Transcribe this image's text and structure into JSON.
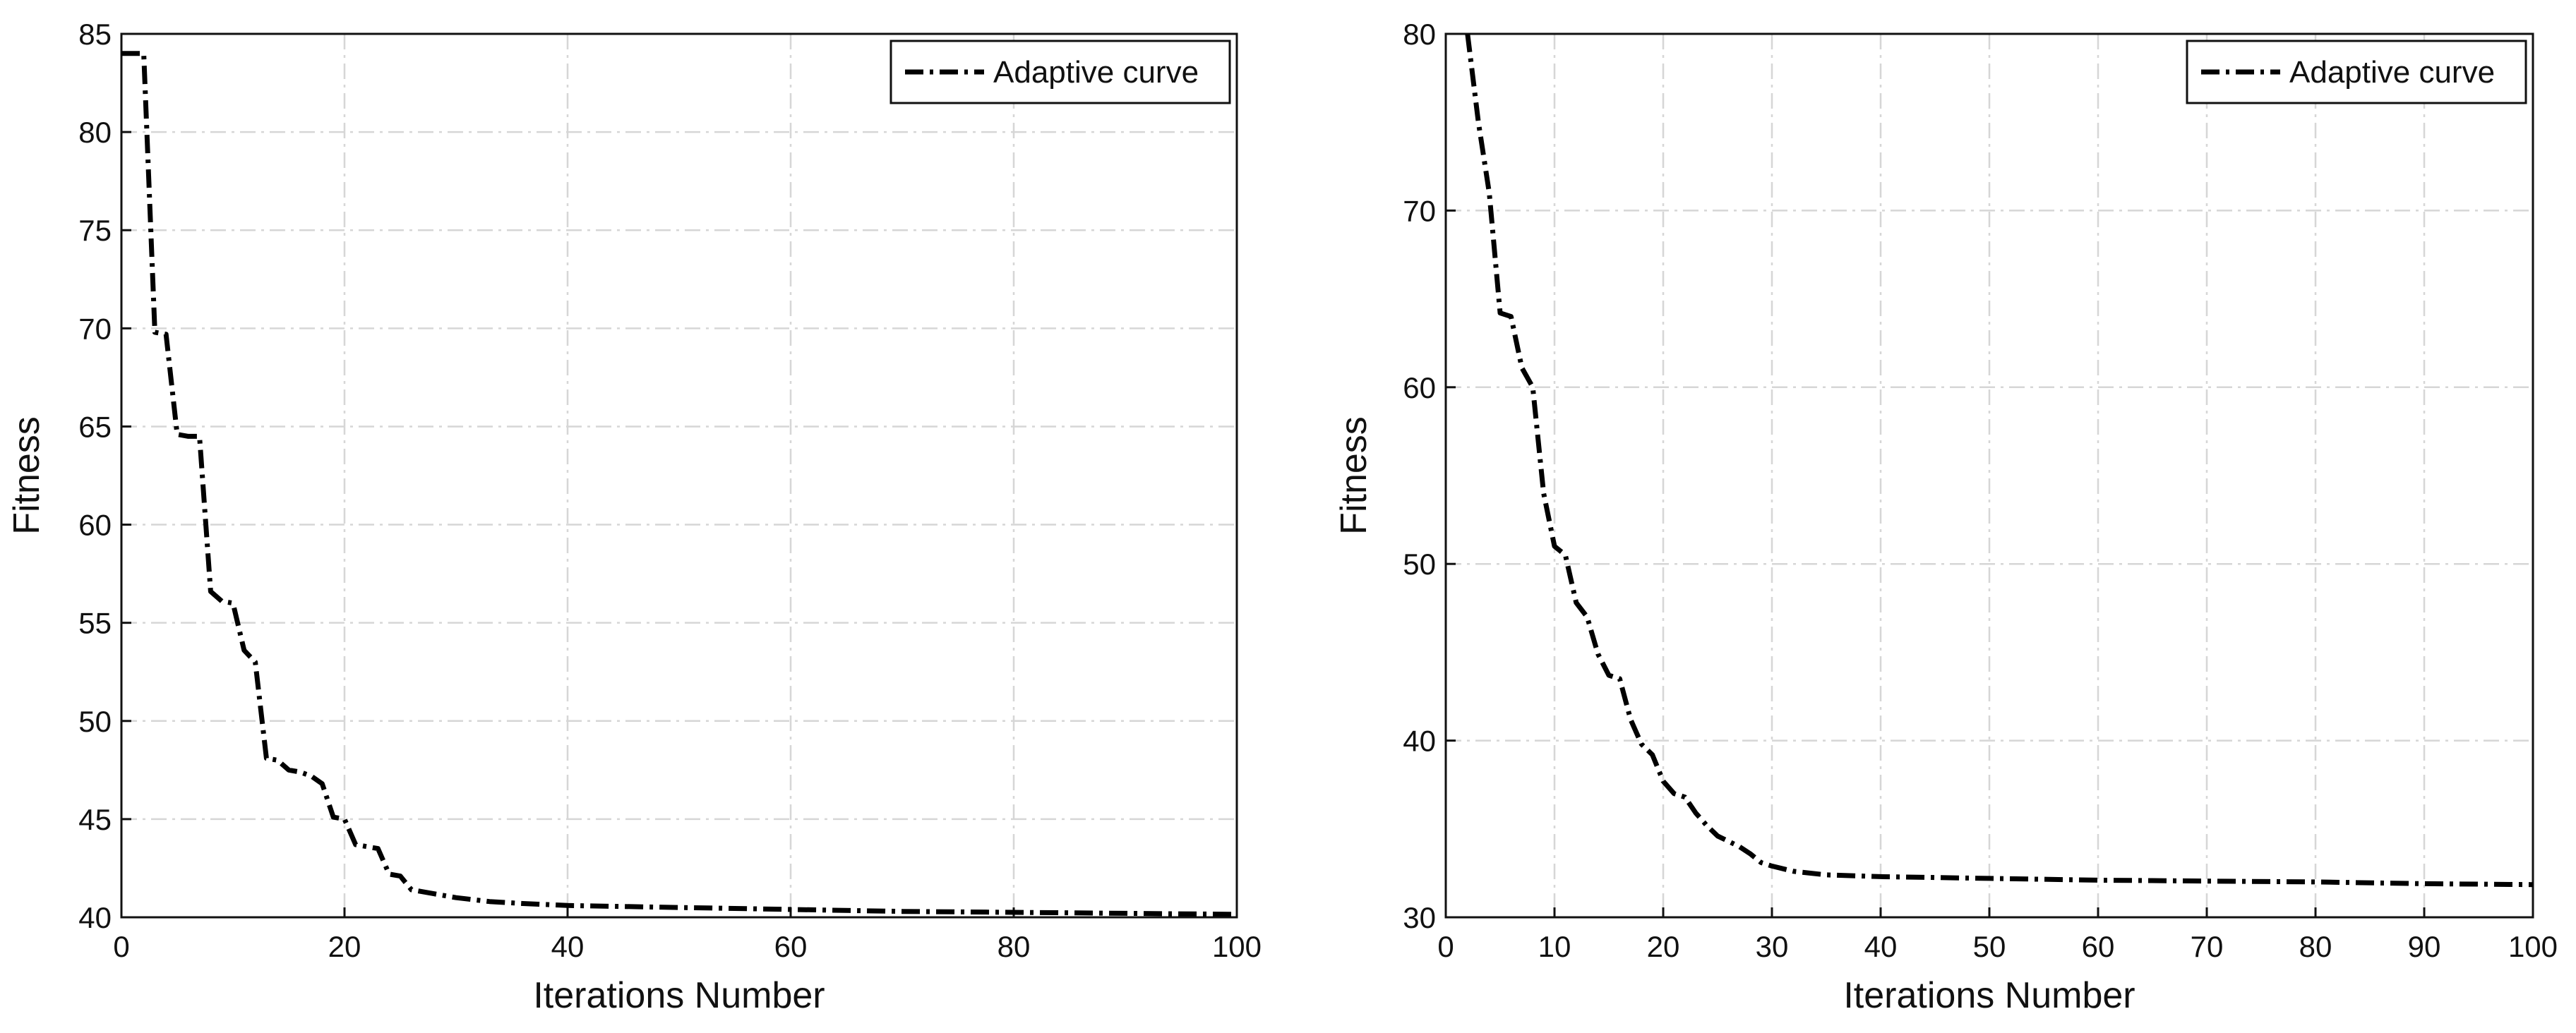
{
  "chart_data": [
    {
      "type": "line",
      "title": "",
      "xlabel": "Iterations Number",
      "ylabel": "Fitness",
      "xlim": [
        0,
        100
      ],
      "ylim": [
        40,
        85
      ],
      "xticks": [
        0,
        20,
        40,
        60,
        80,
        100
      ],
      "yticks": [
        40,
        45,
        50,
        55,
        60,
        65,
        70,
        75,
        80,
        85
      ],
      "grid": true,
      "legend_position": "top-right",
      "series": [
        {
          "name": "Adaptive curve",
          "color": "#000000",
          "line_style": "dash-dot",
          "x": [
            0,
            2,
            3,
            4,
            5,
            6,
            7,
            8,
            9,
            10,
            11,
            12,
            13,
            14,
            15,
            16,
            17,
            18,
            19,
            20,
            21,
            22,
            23,
            24,
            25,
            26,
            28,
            30,
            33,
            36,
            40,
            50,
            60,
            70,
            80,
            90,
            100
          ],
          "y": [
            84,
            84,
            69.8,
            69.7,
            64.6,
            64.5,
            64.5,
            56.6,
            56.1,
            56,
            53.6,
            53,
            48.1,
            48,
            47.5,
            47.4,
            47.2,
            46.8,
            45.1,
            45,
            43.7,
            43.6,
            43.5,
            42.2,
            42.1,
            41.4,
            41.2,
            41,
            40.8,
            40.7,
            40.6,
            40.5,
            40.4,
            40.3,
            40.25,
            40.2,
            40.15
          ]
        }
      ]
    },
    {
      "type": "line",
      "title": "",
      "xlabel": "Iterations Number",
      "ylabel": "Fitness",
      "xlim": [
        0,
        100
      ],
      "ylim": [
        30,
        80
      ],
      "xticks": [
        0,
        10,
        20,
        30,
        40,
        50,
        60,
        70,
        80,
        90,
        100
      ],
      "yticks": [
        30,
        40,
        50,
        60,
        70,
        80
      ],
      "grid": true,
      "legend_position": "top-right",
      "series": [
        {
          "name": "Adaptive curve",
          "color": "#000000",
          "line_style": "dash-dot",
          "x": [
            2,
            3,
            4,
            5,
            6,
            7,
            8,
            9,
            10,
            11,
            12,
            13,
            14,
            15,
            16,
            17,
            18,
            19,
            20,
            21,
            22,
            23,
            24,
            25,
            26,
            27,
            28,
            29,
            30,
            32,
            35,
            40,
            50,
            60,
            70,
            80,
            90,
            100
          ],
          "y": [
            80,
            75,
            71,
            64.2,
            64,
            61.1,
            60,
            54,
            51,
            50.5,
            47.8,
            47,
            44.9,
            43.7,
            43.5,
            41.2,
            39.8,
            39.2,
            37.7,
            37,
            36.8,
            35.9,
            35.2,
            34.6,
            34.3,
            34,
            33.6,
            33.1,
            32.9,
            32.6,
            32.4,
            32.3,
            32.2,
            32.1,
            32.05,
            32,
            31.9,
            31.85
          ]
        }
      ]
    }
  ]
}
